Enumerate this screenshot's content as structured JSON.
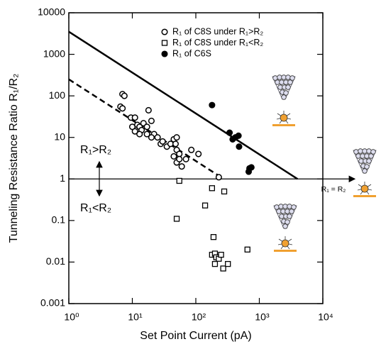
{
  "chart_data": {
    "type": "scatter",
    "xlabel": "Set Point Current (pA)",
    "ylabel": "Tunneling Resistance Ratio R₁/R₂",
    "xlog": true,
    "ylog": true,
    "xlim": [
      1,
      10000
    ],
    "ylim": [
      0.001,
      10000
    ],
    "xticks": [
      {
        "value": 1,
        "label": "10⁰"
      },
      {
        "value": 10,
        "label": "10¹"
      },
      {
        "value": 100,
        "label": "10²"
      },
      {
        "value": 1000,
        "label": "10³"
      },
      {
        "value": 10000,
        "label": "10⁴"
      }
    ],
    "yticks": [
      0.001,
      0.01,
      0.1,
      1,
      10,
      100,
      1000,
      10000
    ],
    "legend": "upper right",
    "series": [
      {
        "name": "R₁ of C8S under R₁>R₂",
        "marker": "open-circle",
        "color": "#000000",
        "x": [
          7,
          7.5,
          6.5,
          7,
          9.5,
          11,
          12,
          13,
          15,
          14,
          10,
          11,
          13,
          17,
          20,
          18,
          22,
          25,
          28,
          30,
          35,
          40,
          45,
          50,
          48,
          50,
          55,
          45,
          50,
          60,
          55,
          85,
          110,
          70,
          230,
          20,
          17
        ],
        "values": [
          110,
          100,
          55,
          50,
          30,
          30,
          20,
          18,
          22,
          15,
          18,
          14,
          12,
          18,
          25,
          45,
          12,
          10,
          7,
          8,
          6,
          7,
          9,
          10,
          7,
          5,
          4,
          3.5,
          2.5,
          2,
          3,
          5,
          4,
          3,
          1.1,
          10,
          12
        ]
      },
      {
        "name": "R₁ of C8S under R₁<R₂",
        "marker": "open-square",
        "color": "#000000",
        "x": [
          55,
          50,
          180,
          280,
          140,
          190,
          180,
          200,
          210,
          200,
          230,
          250,
          270,
          320,
          650
        ],
        "values": [
          0.9,
          0.11,
          0.6,
          0.5,
          0.23,
          0.04,
          0.015,
          0.016,
          0.013,
          0.009,
          0.012,
          0.015,
          0.007,
          0.009,
          0.02
        ]
      },
      {
        "name": "R₁ of C6S",
        "marker": "filled-circle",
        "color": "#000000",
        "x": [
          180,
          340,
          380,
          420,
          470,
          480,
          700,
          750,
          680
        ],
        "values": [
          60,
          13,
          9,
          10,
          11,
          6,
          1.8,
          1.9,
          1.5
        ]
      }
    ],
    "lines": [
      {
        "style": "solid",
        "color": "#000000",
        "x": [
          1,
          4000
        ],
        "values": [
          3500,
          1
        ]
      },
      {
        "style": "dashed",
        "color": "#000000",
        "x": [
          1,
          250
        ],
        "values": [
          250,
          1.1
        ]
      }
    ],
    "hline": 1,
    "annotations": [
      "R₁>R₂",
      "R₁<R₂",
      "R₁ = R₂"
    ]
  }
}
